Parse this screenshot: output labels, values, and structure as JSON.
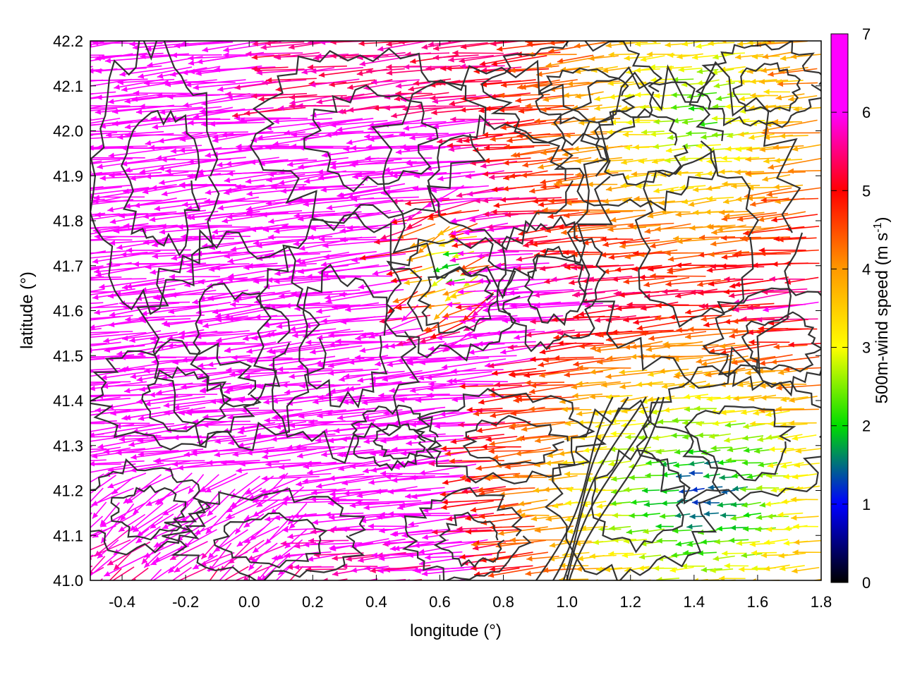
{
  "chart_data": {
    "type": "vector-field",
    "xlabel": "longitude (°)",
    "ylabel": "latitude (°)",
    "colorbar_label": "500m-wind speed",
    "colorbar_unit": "(m s",
    "colorbar_unit_exp": "-1",
    "colorbar_unit_end": ")",
    "xlim": [
      -0.5,
      1.8
    ],
    "ylim": [
      41.0,
      42.2
    ],
    "xticks": [
      "-0.4",
      "-0.2",
      "0.0",
      "0.2",
      "0.4",
      "0.6",
      "0.8",
      "1.0",
      "1.2",
      "1.4",
      "1.6",
      "1.8"
    ],
    "xtick_values": [
      -0.4,
      -0.2,
      0.0,
      0.2,
      0.4,
      0.6,
      0.8,
      1.0,
      1.2,
      1.4,
      1.6,
      1.8
    ],
    "yticks": [
      "41.0",
      "41.1",
      "41.2",
      "41.3",
      "41.4",
      "41.5",
      "41.6",
      "41.7",
      "41.8",
      "41.9",
      "42.0",
      "42.1",
      "42.2"
    ],
    "ytick_values": [
      41.0,
      41.1,
      41.2,
      41.3,
      41.4,
      41.5,
      41.6,
      41.7,
      41.8,
      41.9,
      42.0,
      42.1,
      42.2
    ],
    "cbar_range": [
      0,
      7
    ],
    "cbar_ticks": [
      "0",
      "1",
      "2",
      "3",
      "4",
      "5",
      "6",
      "7"
    ],
    "cbar_tick_values": [
      0,
      1,
      2,
      3,
      4,
      5,
      6,
      7
    ],
    "colormap": [
      "#000000",
      "#0000ff",
      "#00dd00",
      "#ffff00",
      "#ff9900",
      "#ff0000",
      "#ff00ff"
    ],
    "contour_color": "#333333",
    "wind_field_description": "strong WNW-directed wind (about 7 m/s) over west and center, weakening to 1-3 m/s in southeast near coast around lon 1.0-1.8, lat 41.0-41.4"
  }
}
